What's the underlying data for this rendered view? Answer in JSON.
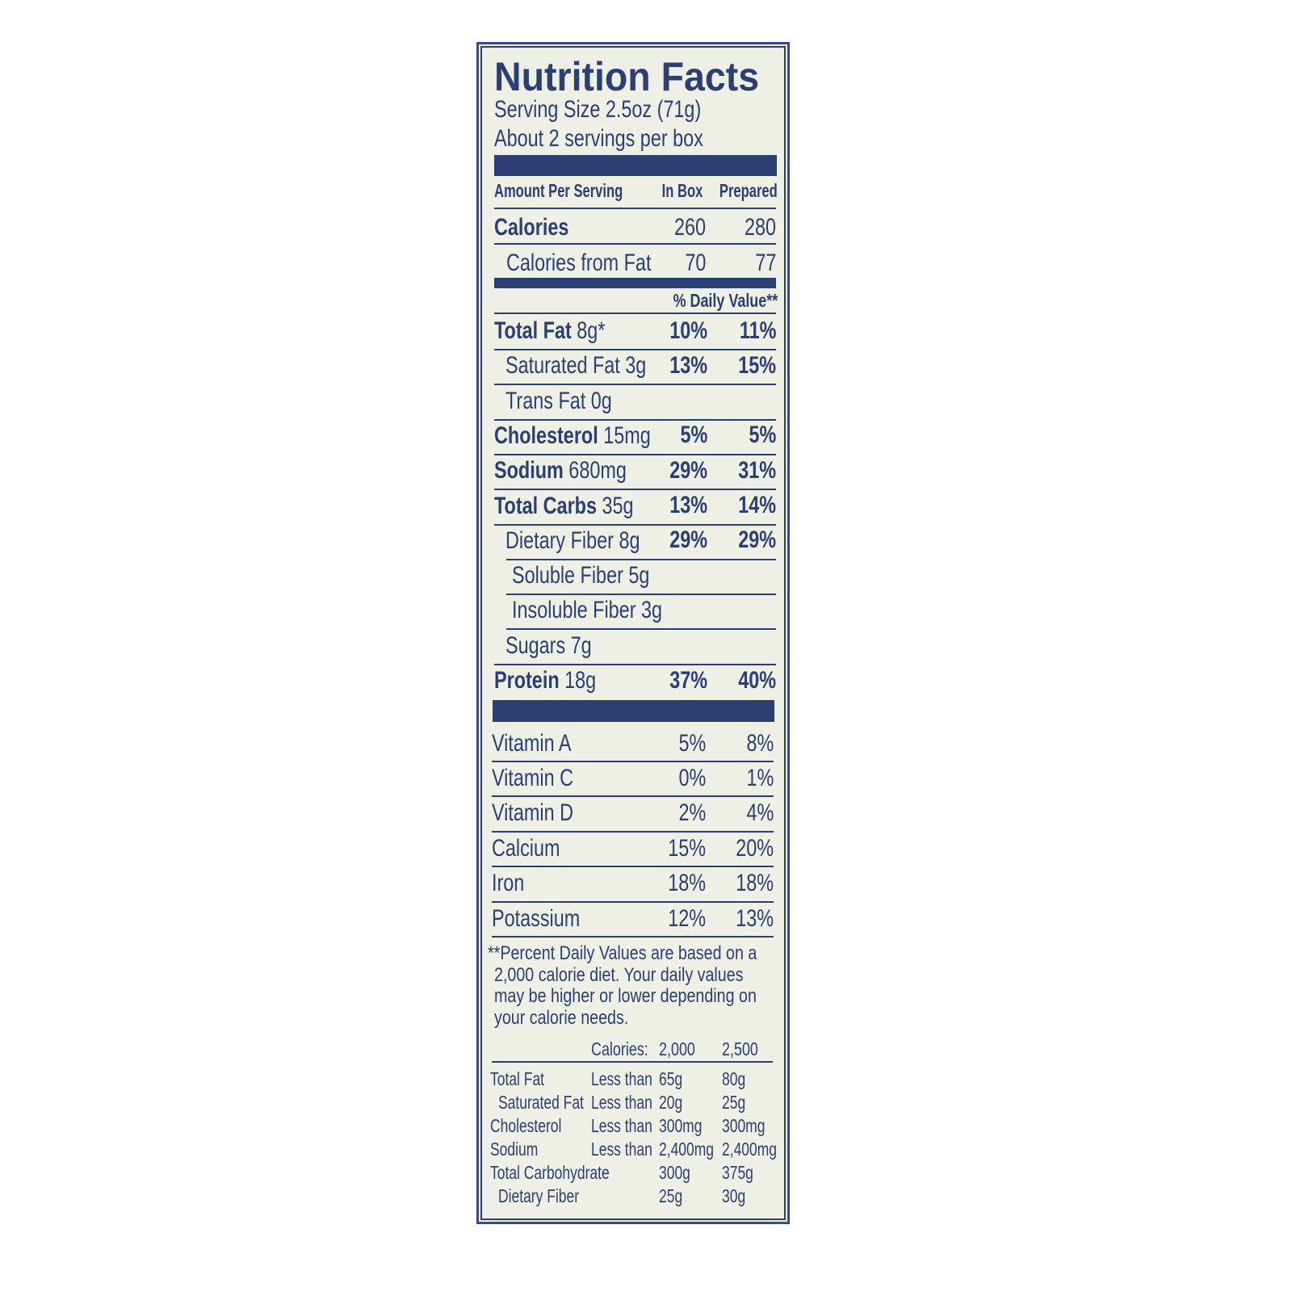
{
  "label": {
    "title": "Nutrition Facts",
    "serving_size": "Serving Size 2.5oz (71g)",
    "servings_per": "About 2 servings per box",
    "header": {
      "amount": "Amount Per Serving",
      "col1": "In Box",
      "col2": "Prepared"
    },
    "calories": {
      "label": "Calories",
      "col1": "260",
      "col2": "280"
    },
    "calories_fat": {
      "label": "Calories from Fat",
      "col1": "70",
      "col2": "77"
    },
    "dv_header": "% Daily Value**",
    "nutrients": [
      {
        "name": "Total Fat",
        "amount": "8g*",
        "col1": "10%",
        "col2": "11%",
        "bold": true,
        "indent": 0
      },
      {
        "name": "Saturated Fat",
        "amount": "3g",
        "col1": "13%",
        "col2": "15%",
        "bold": false,
        "indent": 1
      },
      {
        "name": "Trans Fat",
        "amount": "0g",
        "col1": "",
        "col2": "",
        "bold": false,
        "indent": 1
      },
      {
        "name": "Cholesterol",
        "amount": "15mg",
        "col1": "5%",
        "col2": "5%",
        "bold": true,
        "indent": 0
      },
      {
        "name": "Sodium",
        "amount": "680mg",
        "col1": "29%",
        "col2": "31%",
        "bold": true,
        "indent": 0
      },
      {
        "name": "Total Carbs",
        "amount": "35g",
        "col1": "13%",
        "col2": "14%",
        "bold": true,
        "indent": 0
      },
      {
        "name": "Dietary Fiber",
        "amount": "8g",
        "col1": "29%",
        "col2": "29%",
        "bold": false,
        "indent": 1
      },
      {
        "name": "Soluble Fiber",
        "amount": "5g",
        "col1": "",
        "col2": "",
        "bold": false,
        "indent": 2
      },
      {
        "name": "Insoluble Fiber",
        "amount": "3g",
        "col1": "",
        "col2": "",
        "bold": false,
        "indent": 2
      },
      {
        "name": "Sugars",
        "amount": "7g",
        "col1": "",
        "col2": "",
        "bold": false,
        "indent": 1
      },
      {
        "name": "Protein",
        "amount": "18g",
        "col1": "37%",
        "col2": "40%",
        "bold": true,
        "indent": 0
      }
    ],
    "vitamins": [
      {
        "name": "Vitamin A",
        "col1": "5%",
        "col2": "8%"
      },
      {
        "name": "Vitamin C",
        "col1": "0%",
        "col2": "1%"
      },
      {
        "name": "Vitamin D",
        "col1": "2%",
        "col2": "4%"
      },
      {
        "name": "Calcium",
        "col1": "15%",
        "col2": "20%"
      },
      {
        "name": "Iron",
        "col1": "18%",
        "col2": "18%"
      },
      {
        "name": "Potassium",
        "col1": "12%",
        "col2": "13%"
      }
    ],
    "footnote": [
      "**Percent Daily Values are based on a",
      "2,000 calorie diet. Your daily values",
      "may be higher or lower depending on",
      "your calorie needs."
    ],
    "dv_table": {
      "header": {
        "label": "Calories:",
        "c1": "2,000",
        "c2": "2,500"
      },
      "rows": [
        {
          "name": "Total Fat",
          "qual": "Less than",
          "c1": "65g",
          "c2": "80g",
          "indent": false
        },
        {
          "name": "Saturated Fat",
          "qual": "Less than",
          "c1": "20g",
          "c2": "25g",
          "indent": true
        },
        {
          "name": "Cholesterol",
          "qual": "Less than",
          "c1": "300mg",
          "c2": "300mg",
          "indent": false
        },
        {
          "name": "Sodium",
          "qual": "Less than",
          "c1": "2,400mg",
          "c2": "2,400mg",
          "indent": false
        },
        {
          "name": "Total Carbohydrate",
          "qual": "",
          "c1": "300g",
          "c2": "375g",
          "indent": false
        },
        {
          "name": "Dietary Fiber",
          "qual": "",
          "c1": "25g",
          "c2": "30g",
          "indent": true
        }
      ]
    }
  },
  "colors": {
    "ink": "#2b3f72",
    "background": "#eef0e5"
  }
}
